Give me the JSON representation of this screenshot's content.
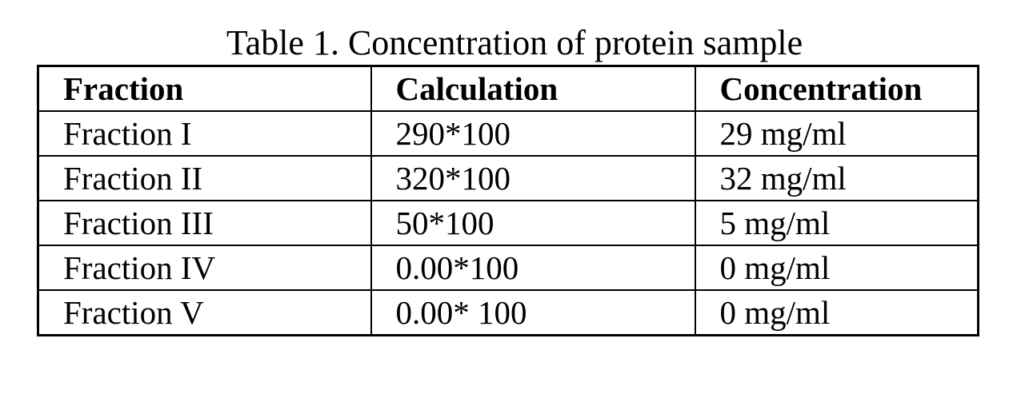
{
  "title": "Table 1. Concentration of protein sample",
  "table": {
    "header": [
      "Fraction",
      "Calculation",
      "Concentration"
    ],
    "rows": [
      [
        "Fraction I",
        "290*100",
        "29 mg/ml"
      ],
      [
        "Fraction II",
        "320*100",
        "32 mg/ml"
      ],
      [
        "Fraction III",
        "50*100",
        "5 mg/ml"
      ],
      [
        "Fraction IV",
        "0.00*100",
        "0 mg/ml"
      ],
      [
        "Fraction V",
        "0.00* 100",
        "0 mg/ml"
      ]
    ]
  }
}
